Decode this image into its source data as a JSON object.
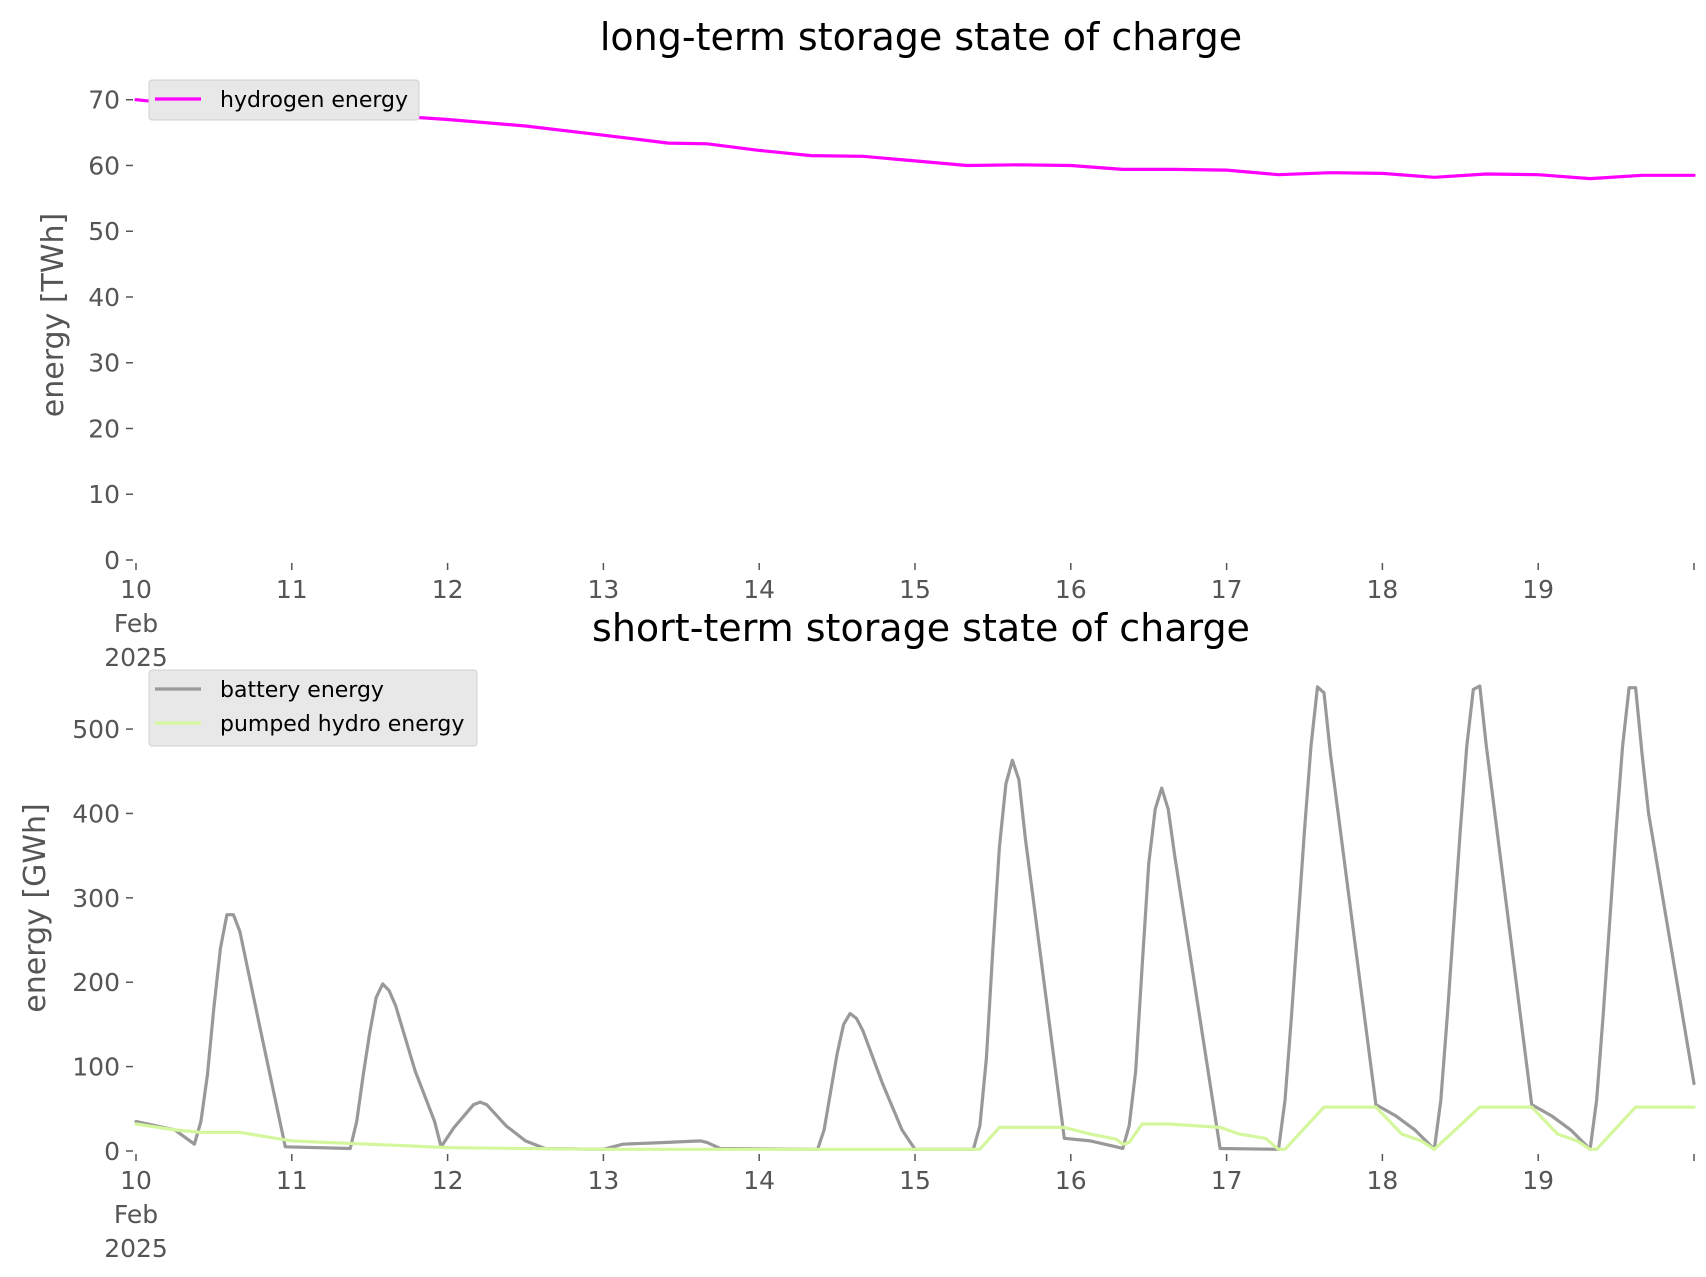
{
  "chart_data": [
    {
      "type": "line",
      "title": "long-term storage state of charge",
      "ylabel": "energy [TWh]",
      "xlabel": "",
      "xlim": [
        "2025-02-10",
        "2025-02-20"
      ],
      "ylim": [
        0,
        73
      ],
      "yticks": [
        0,
        10,
        20,
        30,
        40,
        50,
        60,
        70
      ],
      "x_tick_labels": [
        {
          "date": "2025-02-10",
          "lines": [
            "10",
            "Feb",
            "2025"
          ]
        },
        {
          "date": "2025-02-11",
          "lines": [
            "11"
          ]
        },
        {
          "date": "2025-02-12",
          "lines": [
            "12"
          ]
        },
        {
          "date": "2025-02-13",
          "lines": [
            "13"
          ]
        },
        {
          "date": "2025-02-14",
          "lines": [
            "14"
          ]
        },
        {
          "date": "2025-02-15",
          "lines": [
            "15"
          ]
        },
        {
          "date": "2025-02-16",
          "lines": [
            "16"
          ]
        },
        {
          "date": "2025-02-17",
          "lines": [
            "17"
          ]
        },
        {
          "date": "2025-02-18",
          "lines": [
            "18"
          ]
        },
        {
          "date": "2025-02-19",
          "lines": [
            "19"
          ]
        },
        {
          "date": "2025-02-20",
          "lines": [
            ""
          ]
        }
      ],
      "grid": false,
      "legend_position": "upper-left",
      "series": [
        {
          "name": "hydrogen energy",
          "color": "#ff00ff",
          "points": [
            [
              "2025-02-10 00:00",
              70.0
            ],
            [
              "2025-02-10 12:00",
              68.8
            ],
            [
              "2025-02-11 00:00",
              68.2
            ],
            [
              "2025-02-11 12:00",
              67.8
            ],
            [
              "2025-02-12 00:00",
              67.0
            ],
            [
              "2025-02-12 12:00",
              66.0
            ],
            [
              "2025-02-13 00:00",
              64.6
            ],
            [
              "2025-02-13 10:00",
              63.4
            ],
            [
              "2025-02-13 16:00",
              63.3
            ],
            [
              "2025-02-14 00:00",
              62.3
            ],
            [
              "2025-02-14 08:00",
              61.5
            ],
            [
              "2025-02-14 16:00",
              61.4
            ],
            [
              "2025-02-15 00:00",
              60.7
            ],
            [
              "2025-02-15 08:00",
              60.0
            ],
            [
              "2025-02-15 16:00",
              60.1
            ],
            [
              "2025-02-16 00:00",
              60.0
            ],
            [
              "2025-02-16 08:00",
              59.4
            ],
            [
              "2025-02-16 16:00",
              59.4
            ],
            [
              "2025-02-17 00:00",
              59.3
            ],
            [
              "2025-02-17 08:00",
              58.6
            ],
            [
              "2025-02-17 16:00",
              58.9
            ],
            [
              "2025-02-18 00:00",
              58.8
            ],
            [
              "2025-02-18 08:00",
              58.2
            ],
            [
              "2025-02-18 16:00",
              58.7
            ],
            [
              "2025-02-19 00:00",
              58.6
            ],
            [
              "2025-02-19 08:00",
              58.0
            ],
            [
              "2025-02-19 16:00",
              58.5
            ],
            [
              "2025-02-20 00:00",
              58.5
            ]
          ]
        }
      ]
    },
    {
      "type": "line",
      "title": "short-term storage state of charge",
      "ylabel": "energy [GWh]",
      "xlabel": "",
      "xlim": [
        "2025-02-10",
        "2025-02-20"
      ],
      "ylim": [
        0,
        570
      ],
      "yticks": [
        0,
        100,
        200,
        300,
        400,
        500
      ],
      "x_tick_labels": [
        {
          "date": "2025-02-10",
          "lines": [
            "10",
            "Feb",
            "2025"
          ]
        },
        {
          "date": "2025-02-11",
          "lines": [
            "11"
          ]
        },
        {
          "date": "2025-02-12",
          "lines": [
            "12"
          ]
        },
        {
          "date": "2025-02-13",
          "lines": [
            "13"
          ]
        },
        {
          "date": "2025-02-14",
          "lines": [
            "14"
          ]
        },
        {
          "date": "2025-02-15",
          "lines": [
            "15"
          ]
        },
        {
          "date": "2025-02-16",
          "lines": [
            "16"
          ]
        },
        {
          "date": "2025-02-17",
          "lines": [
            "17"
          ]
        },
        {
          "date": "2025-02-18",
          "lines": [
            "18"
          ]
        },
        {
          "date": "2025-02-19",
          "lines": [
            "19"
          ]
        },
        {
          "date": "2025-02-20",
          "lines": [
            ""
          ]
        }
      ],
      "grid": false,
      "legend_position": "upper-left",
      "series": [
        {
          "name": "battery energy",
          "color": "#999999",
          "points": [
            [
              "2025-02-10 00:00",
              35
            ],
            [
              "2025-02-10 06:00",
              25
            ],
            [
              "2025-02-10 09:00",
              8
            ],
            [
              "2025-02-10 10:00",
              35
            ],
            [
              "2025-02-10 11:00",
              90
            ],
            [
              "2025-02-10 12:00",
              170
            ],
            [
              "2025-02-10 13:00",
              240
            ],
            [
              "2025-02-10 14:00",
              280
            ],
            [
              "2025-02-10 15:00",
              280
            ],
            [
              "2025-02-10 16:00",
              260
            ],
            [
              "2025-02-10 19:00",
              150
            ],
            [
              "2025-02-10 23:00",
              5
            ],
            [
              "2025-02-11 09:00",
              3
            ],
            [
              "2025-02-11 10:00",
              35
            ],
            [
              "2025-02-11 11:00",
              90
            ],
            [
              "2025-02-11 12:00",
              140
            ],
            [
              "2025-02-11 13:00",
              182
            ],
            [
              "2025-02-11 14:00",
              198
            ],
            [
              "2025-02-11 15:00",
              190
            ],
            [
              "2025-02-11 16:00",
              172
            ],
            [
              "2025-02-11 19:00",
              95
            ],
            [
              "2025-02-11 22:00",
              35
            ],
            [
              "2025-02-11 23:00",
              5
            ],
            [
              "2025-02-12 01:00",
              28
            ],
            [
              "2025-02-12 04:00",
              55
            ],
            [
              "2025-02-12 05:00",
              58
            ],
            [
              "2025-02-12 06:00",
              55
            ],
            [
              "2025-02-12 09:00",
              30
            ],
            [
              "2025-02-12 12:00",
              12
            ],
            [
              "2025-02-12 15:00",
              3
            ],
            [
              "2025-02-13 00:00",
              2
            ],
            [
              "2025-02-13 03:00",
              8
            ],
            [
              "2025-02-13 09:00",
              10
            ],
            [
              "2025-02-13 15:00",
              12
            ],
            [
              "2025-02-13 16:00",
              10
            ],
            [
              "2025-02-13 18:00",
              3
            ],
            [
              "2025-02-14 09:00",
              2
            ],
            [
              "2025-02-14 10:00",
              25
            ],
            [
              "2025-02-14 11:00",
              70
            ],
            [
              "2025-02-14 12:00",
              115
            ],
            [
              "2025-02-14 13:00",
              150
            ],
            [
              "2025-02-14 14:00",
              163
            ],
            [
              "2025-02-14 15:00",
              157
            ],
            [
              "2025-02-14 16:00",
              142
            ],
            [
              "2025-02-14 19:00",
              80
            ],
            [
              "2025-02-14 22:00",
              25
            ],
            [
              "2025-02-15 00:00",
              2
            ],
            [
              "2025-02-15 09:00",
              2
            ],
            [
              "2025-02-15 10:00",
              30
            ],
            [
              "2025-02-15 11:00",
              110
            ],
            [
              "2025-02-15 12:00",
              240
            ],
            [
              "2025-02-15 13:00",
              360
            ],
            [
              "2025-02-15 14:00",
              435
            ],
            [
              "2025-02-15 15:00",
              463
            ],
            [
              "2025-02-15 16:00",
              440
            ],
            [
              "2025-02-15 17:00",
              370
            ],
            [
              "2025-02-15 23:00",
              15
            ],
            [
              "2025-02-16 03:00",
              12
            ],
            [
              "2025-02-16 07:00",
              5
            ],
            [
              "2025-02-16 08:00",
              3
            ],
            [
              "2025-02-16 09:00",
              30
            ],
            [
              "2025-02-16 10:00",
              95
            ],
            [
              "2025-02-16 11:00",
              220
            ],
            [
              "2025-02-16 12:00",
              340
            ],
            [
              "2025-02-16 13:00",
              405
            ],
            [
              "2025-02-16 14:00",
              430
            ],
            [
              "2025-02-16 15:00",
              405
            ],
            [
              "2025-02-16 16:00",
              350
            ],
            [
              "2025-02-16 23:00",
              3
            ],
            [
              "2025-02-17 08:00",
              2
            ],
            [
              "2025-02-17 09:00",
              60
            ],
            [
              "2025-02-17 10:00",
              160
            ],
            [
              "2025-02-17 11:00",
              270
            ],
            [
              "2025-02-17 12:00",
              380
            ],
            [
              "2025-02-17 13:00",
              480
            ],
            [
              "2025-02-17 14:00",
              550
            ],
            [
              "2025-02-17 15:00",
              543
            ],
            [
              "2025-02-17 16:00",
              470
            ],
            [
              "2025-02-17 23:00",
              55
            ],
            [
              "2025-02-18 02:00",
              42
            ],
            [
              "2025-02-18 05:00",
              25
            ],
            [
              "2025-02-18 08:00",
              2
            ],
            [
              "2025-02-18 09:00",
              60
            ],
            [
              "2025-02-18 10:00",
              160
            ],
            [
              "2025-02-18 11:00",
              270
            ],
            [
              "2025-02-18 12:00",
              380
            ],
            [
              "2025-02-18 13:00",
              480
            ],
            [
              "2025-02-18 14:00",
              547
            ],
            [
              "2025-02-18 15:00",
              551
            ],
            [
              "2025-02-18 16:00",
              480
            ],
            [
              "2025-02-18 23:00",
              55
            ],
            [
              "2025-02-19 02:00",
              42
            ],
            [
              "2025-02-19 05:00",
              25
            ],
            [
              "2025-02-19 08:00",
              2
            ],
            [
              "2025-02-19 09:00",
              60
            ],
            [
              "2025-02-19 10:00",
              160
            ],
            [
              "2025-02-19 11:00",
              270
            ],
            [
              "2025-02-19 12:00",
              380
            ],
            [
              "2025-02-19 13:00",
              480
            ],
            [
              "2025-02-19 14:00",
              549
            ],
            [
              "2025-02-19 15:00",
              549
            ],
            [
              "2025-02-19 16:00",
              470
            ],
            [
              "2025-02-19 17:00",
              400
            ],
            [
              "2025-02-20 00:00",
              80
            ]
          ]
        },
        {
          "name": "pumped hydro energy",
          "color": "#d4f79e",
          "points": [
            [
              "2025-02-10 00:00",
              32
            ],
            [
              "2025-02-10 06:00",
              25
            ],
            [
              "2025-02-10 10:00",
              22
            ],
            [
              "2025-02-10 16:00",
              22
            ],
            [
              "2025-02-11 00:00",
              12
            ],
            [
              "2025-02-11 06:00",
              10
            ],
            [
              "2025-02-11 12:00",
              8
            ],
            [
              "2025-02-11 18:00",
              6
            ],
            [
              "2025-02-12 00:00",
              4
            ],
            [
              "2025-02-12 12:00",
              3
            ],
            [
              "2025-02-13 00:00",
              2
            ],
            [
              "2025-02-14 00:00",
              2
            ],
            [
              "2025-02-15 00:00",
              2
            ],
            [
              "2025-02-15 10:00",
              2
            ],
            [
              "2025-02-15 13:00",
              28
            ],
            [
              "2025-02-15 23:00",
              28
            ],
            [
              "2025-02-16 03:00",
              20
            ],
            [
              "2025-02-16 07:00",
              14
            ],
            [
              "2025-02-16 08:00",
              8
            ],
            [
              "2025-02-16 09:00",
              10
            ],
            [
              "2025-02-16 11:00",
              32
            ],
            [
              "2025-02-16 15:00",
              32
            ],
            [
              "2025-02-16 23:00",
              28
            ],
            [
              "2025-02-17 02:00",
              20
            ],
            [
              "2025-02-17 06:00",
              15
            ],
            [
              "2025-02-17 08:00",
              2
            ],
            [
              "2025-02-17 09:00",
              2
            ],
            [
              "2025-02-17 15:00",
              52
            ],
            [
              "2025-02-17 23:00",
              52
            ],
            [
              "2025-02-18 03:00",
              20
            ],
            [
              "2025-02-18 06:00",
              12
            ],
            [
              "2025-02-18 08:00",
              2
            ],
            [
              "2025-02-18 15:00",
              52
            ],
            [
              "2025-02-18 23:00",
              52
            ],
            [
              "2025-02-19 03:00",
              20
            ],
            [
              "2025-02-19 06:00",
              12
            ],
            [
              "2025-02-19 08:00",
              2
            ],
            [
              "2025-02-19 09:00",
              2
            ],
            [
              "2025-02-19 15:00",
              52
            ],
            [
              "2025-02-20 00:00",
              52
            ]
          ]
        }
      ]
    }
  ]
}
